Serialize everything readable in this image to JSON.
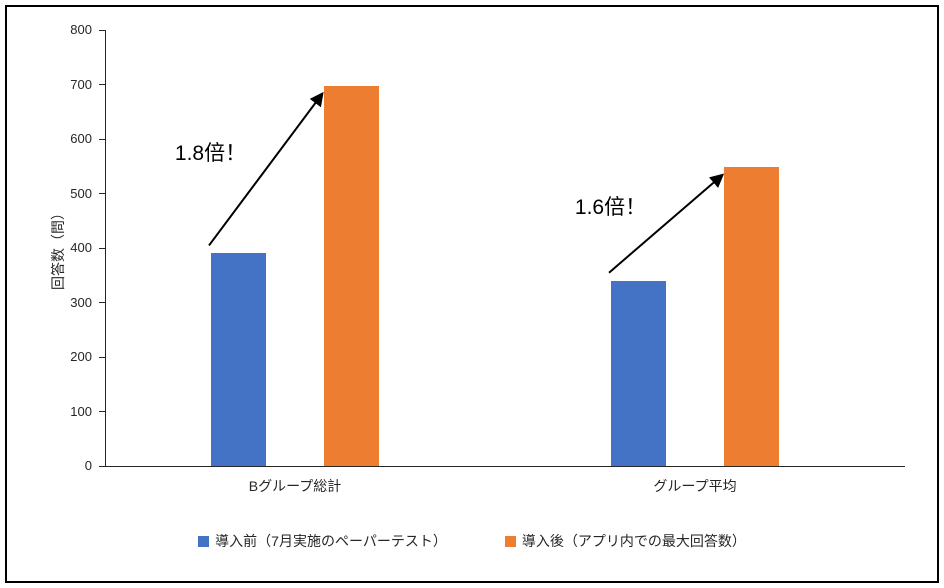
{
  "chart_data": {
    "type": "bar",
    "title": "",
    "categories": [
      "Bグループ総計",
      "グループ平均"
    ],
    "series": [
      {
        "name": "導入前（7月実施のペーパーテスト）",
        "color": "#4472C4",
        "values": [
          390,
          340
        ]
      },
      {
        "name": "導入後（アプリ内での最大回答数）",
        "color": "#ED7D31",
        "values": [
          697,
          548
        ]
      }
    ],
    "xlabel": "",
    "ylabel": "回答数（問）",
    "ylim": [
      0,
      800
    ],
    "ytick_step": 100,
    "grid": false,
    "legend_position": "bottom",
    "annotations": [
      {
        "label": "1.8倍！",
        "category_index": 0
      },
      {
        "label": "1.6倍！",
        "category_index": 1
      }
    ]
  },
  "colors": {
    "axis": "#262626",
    "text": "#262626",
    "annotation": "#000000",
    "frame_border": "#000000"
  }
}
